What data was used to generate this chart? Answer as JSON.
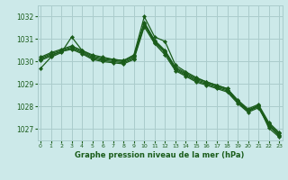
{
  "title": "Graphe pression niveau de la mer (hPa)",
  "bg_color": "#cce9e9",
  "grid_color": "#aacccc",
  "line_color": "#1a5c1a",
  "marker_color": "#1a5c1a",
  "ylim": [
    1026.5,
    1032.5
  ],
  "xlim": [
    -0.3,
    23.3
  ],
  "yticks": [
    1027,
    1028,
    1029,
    1030,
    1031,
    1032
  ],
  "xticks": [
    0,
    1,
    2,
    3,
    4,
    5,
    6,
    7,
    8,
    9,
    10,
    11,
    12,
    13,
    14,
    15,
    16,
    17,
    18,
    19,
    20,
    21,
    22,
    23
  ],
  "series": [
    [
      1029.7,
      1030.2,
      1030.4,
      1031.1,
      1030.5,
      1030.3,
      1030.2,
      1030.1,
      1030.05,
      1030.3,
      1032.0,
      1031.1,
      1030.9,
      1029.85,
      1029.55,
      1029.3,
      1029.1,
      1028.95,
      1028.8,
      1028.25,
      1027.8,
      1028.05,
      1027.05,
      1026.65
    ],
    [
      1030.05,
      1030.25,
      1030.45,
      1030.55,
      1030.35,
      1030.1,
      1030.0,
      1029.95,
      1029.9,
      1030.1,
      1031.55,
      1030.8,
      1030.3,
      1029.6,
      1029.35,
      1029.1,
      1028.95,
      1028.8,
      1028.65,
      1028.15,
      1027.75,
      1027.95,
      1027.15,
      1026.7
    ],
    [
      1030.1,
      1030.3,
      1030.45,
      1030.6,
      1030.4,
      1030.15,
      1030.05,
      1030.0,
      1029.95,
      1030.15,
      1031.65,
      1030.85,
      1030.4,
      1029.65,
      1029.4,
      1029.15,
      1029.0,
      1028.85,
      1028.7,
      1028.2,
      1027.8,
      1028.0,
      1027.2,
      1026.75
    ],
    [
      1030.15,
      1030.35,
      1030.5,
      1030.65,
      1030.45,
      1030.2,
      1030.1,
      1030.05,
      1030.0,
      1030.2,
      1031.7,
      1030.9,
      1030.45,
      1029.7,
      1029.45,
      1029.2,
      1029.05,
      1028.9,
      1028.75,
      1028.25,
      1027.85,
      1028.05,
      1027.25,
      1026.8
    ],
    [
      1030.2,
      1030.4,
      1030.55,
      1030.7,
      1030.5,
      1030.25,
      1030.15,
      1030.1,
      1030.05,
      1030.25,
      1031.75,
      1030.95,
      1030.5,
      1029.75,
      1029.5,
      1029.25,
      1029.1,
      1028.95,
      1028.8,
      1028.3,
      1027.9,
      1028.1,
      1027.3,
      1026.85
    ]
  ]
}
